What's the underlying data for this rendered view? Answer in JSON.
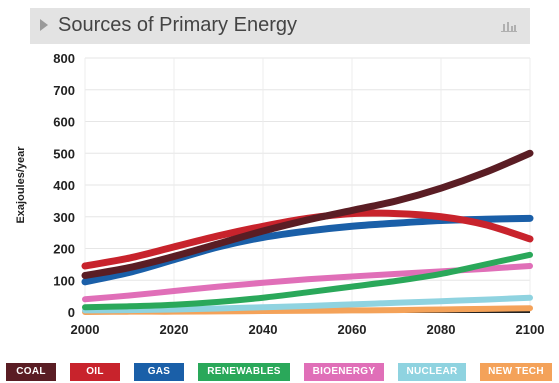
{
  "header": {
    "title": "Sources of Primary Energy",
    "chart_icon": "bar-chart-icon"
  },
  "colors": {
    "COAL": "#5a1d24",
    "OIL": "#c8232c",
    "GAS": "#1a5fa8",
    "RENEWABLES": "#2aa85a",
    "BIOENERGY": "#e06fb8",
    "NUCLEAR": "#8fd3e0",
    "NEW TECH": "#f4a259"
  },
  "chart_data": {
    "type": "line",
    "title": "Sources of Primary Energy",
    "xlabel": "",
    "ylabel": "Exajoules/year",
    "xlim": [
      2000,
      2100
    ],
    "ylim": [
      0,
      800
    ],
    "xticks": [
      2000,
      2020,
      2040,
      2060,
      2080,
      2100
    ],
    "yticks": [
      0,
      100,
      200,
      300,
      400,
      500,
      600,
      700,
      800
    ],
    "grid": true,
    "legend_position": "bottom",
    "x": [
      2000,
      2010,
      2020,
      2030,
      2040,
      2050,
      2060,
      2070,
      2080,
      2090,
      2100
    ],
    "series": [
      {
        "name": "COAL",
        "values": [
          115,
          140,
          175,
          215,
          255,
          290,
          320,
          350,
          390,
          440,
          500
        ]
      },
      {
        "name": "OIL",
        "values": [
          145,
          170,
          205,
          240,
          270,
          295,
          310,
          310,
          300,
          275,
          230
        ]
      },
      {
        "name": "GAS",
        "values": [
          95,
          125,
          165,
          205,
          235,
          255,
          270,
          280,
          288,
          292,
          295
        ]
      },
      {
        "name": "RENEWABLES",
        "values": [
          15,
          18,
          23,
          32,
          45,
          62,
          80,
          98,
          120,
          150,
          180
        ]
      },
      {
        "name": "BIOENERGY",
        "values": [
          40,
          52,
          66,
          80,
          92,
          103,
          112,
          120,
          128,
          136,
          145
        ]
      },
      {
        "name": "NUCLEAR",
        "values": [
          5,
          6,
          8,
          11,
          15,
          19,
          24,
          29,
          34,
          39,
          45
        ]
      },
      {
        "name": "NEW TECH",
        "values": [
          0,
          1,
          1,
          2,
          3,
          4,
          5,
          6,
          8,
          10,
          12
        ]
      }
    ]
  }
}
